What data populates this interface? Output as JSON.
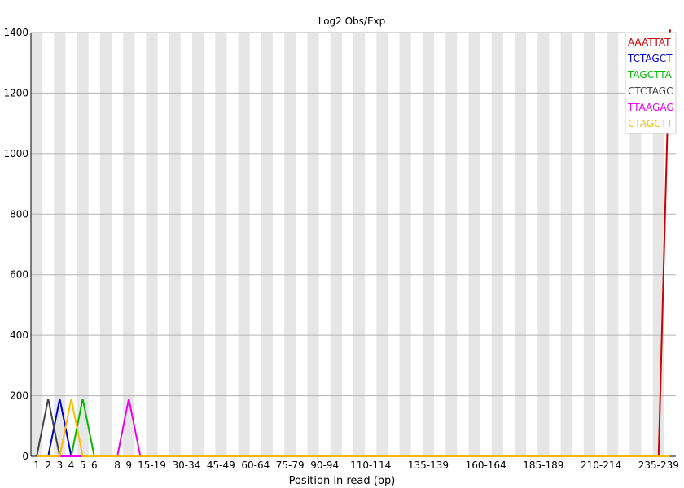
{
  "chart_data": {
    "type": "line",
    "title": "Log2 Obs/Exp",
    "xlabel": "Position in read (bp)",
    "ylabel": "",
    "ylim": [
      0,
      1400
    ],
    "yticks": [
      0,
      200,
      400,
      600,
      800,
      1000,
      1200,
      1400
    ],
    "categories": [
      "1",
      "2",
      "3",
      "4",
      "5",
      "6",
      "7",
      "8",
      "9",
      "10-14",
      "15-19",
      "20-24",
      "25-29",
      "30-34",
      "35-39",
      "40-44",
      "45-49",
      "50-54",
      "55-59",
      "60-64",
      "65-69",
      "70-74",
      "75-79",
      "80-84",
      "85-89",
      "90-94",
      "95-99",
      "100-104",
      "105-109",
      "110-114",
      "115-119",
      "120-124",
      "125-129",
      "130-134",
      "135-139",
      "140-144",
      "145-149",
      "150-154",
      "155-159",
      "160-164",
      "165-169",
      "170-174",
      "175-179",
      "180-184",
      "185-189",
      "190-194",
      "195-199",
      "200-204",
      "205-209",
      "210-214",
      "215-219",
      "220-224",
      "225-229",
      "230-234",
      "235-239",
      "240-241"
    ],
    "shown_tick_labels": [
      "1",
      "2",
      "3",
      "4",
      "5",
      "6",
      "8",
      "9",
      "15-19",
      "30-34",
      "45-49",
      "60-64",
      "75-79",
      "90-94",
      "110-114",
      "135-139",
      "160-164",
      "185-189",
      "210-214",
      "235-239"
    ],
    "grid": true,
    "legend_position": "top-right",
    "series": [
      {
        "name": "AAATTAT",
        "color": "#cc0000",
        "values": [
          0,
          0,
          0,
          0,
          0,
          0,
          0,
          0,
          0,
          0,
          0,
          0,
          0,
          0,
          0,
          0,
          0,
          0,
          0,
          0,
          0,
          0,
          0,
          0,
          0,
          0,
          0,
          0,
          0,
          0,
          0,
          0,
          0,
          0,
          0,
          0,
          0,
          0,
          0,
          0,
          0,
          0,
          0,
          0,
          0,
          0,
          0,
          0,
          0,
          0,
          0,
          0,
          0,
          0,
          0,
          1410
        ]
      },
      {
        "name": "TCTAGCT",
        "color": "#0000cc",
        "values": [
          0,
          0,
          190,
          0,
          0,
          0,
          0,
          0,
          0,
          0,
          0,
          0,
          0,
          0,
          0,
          0,
          0,
          0,
          0,
          0,
          0,
          0,
          0,
          0,
          0,
          0,
          0,
          0,
          0,
          0,
          0,
          0,
          0,
          0,
          0,
          0,
          0,
          0,
          0,
          0,
          0,
          0,
          0,
          0,
          0,
          0,
          0,
          0,
          0,
          0,
          0,
          0,
          0,
          0,
          0,
          0
        ]
      },
      {
        "name": "TAGCTTA",
        "color": "#00bb00",
        "values": [
          0,
          0,
          0,
          0,
          190,
          0,
          0,
          0,
          0,
          0,
          0,
          0,
          0,
          0,
          0,
          0,
          0,
          0,
          0,
          0,
          0,
          0,
          0,
          0,
          0,
          0,
          0,
          0,
          0,
          0,
          0,
          0,
          0,
          0,
          0,
          0,
          0,
          0,
          0,
          0,
          0,
          0,
          0,
          0,
          0,
          0,
          0,
          0,
          0,
          0,
          0,
          0,
          0,
          0,
          0,
          0
        ]
      },
      {
        "name": "CTCTAGC",
        "color": "#444444",
        "values": [
          0,
          190,
          0,
          0,
          0,
          0,
          0,
          0,
          0,
          0,
          0,
          0,
          0,
          0,
          0,
          0,
          0,
          0,
          0,
          0,
          0,
          0,
          0,
          0,
          0,
          0,
          0,
          0,
          0,
          0,
          0,
          0,
          0,
          0,
          0,
          0,
          0,
          0,
          0,
          0,
          0,
          0,
          0,
          0,
          0,
          0,
          0,
          0,
          0,
          0,
          0,
          0,
          0,
          0,
          0,
          0
        ]
      },
      {
        "name": "TTAAGAG",
        "color": "#ee00ee",
        "values": [
          0,
          0,
          0,
          0,
          0,
          0,
          0,
          0,
          190,
          0,
          0,
          0,
          0,
          0,
          0,
          0,
          0,
          0,
          0,
          0,
          0,
          0,
          0,
          0,
          0,
          0,
          0,
          0,
          0,
          0,
          0,
          0,
          0,
          0,
          0,
          0,
          0,
          0,
          0,
          0,
          0,
          0,
          0,
          0,
          0,
          0,
          0,
          0,
          0,
          0,
          0,
          0,
          0,
          0,
          0,
          0
        ]
      },
      {
        "name": "CTAGCTT",
        "color": "#ffbb00",
        "values": [
          0,
          0,
          0,
          190,
          0,
          0,
          0,
          0,
          0,
          0,
          0,
          0,
          0,
          0,
          0,
          0,
          0,
          0,
          0,
          0,
          0,
          0,
          0,
          0,
          0,
          0,
          0,
          0,
          0,
          0,
          0,
          0,
          0,
          0,
          0,
          0,
          0,
          0,
          0,
          0,
          0,
          0,
          0,
          0,
          0,
          0,
          0,
          0,
          0,
          0,
          0,
          0,
          0,
          0,
          0,
          0
        ]
      }
    ]
  }
}
